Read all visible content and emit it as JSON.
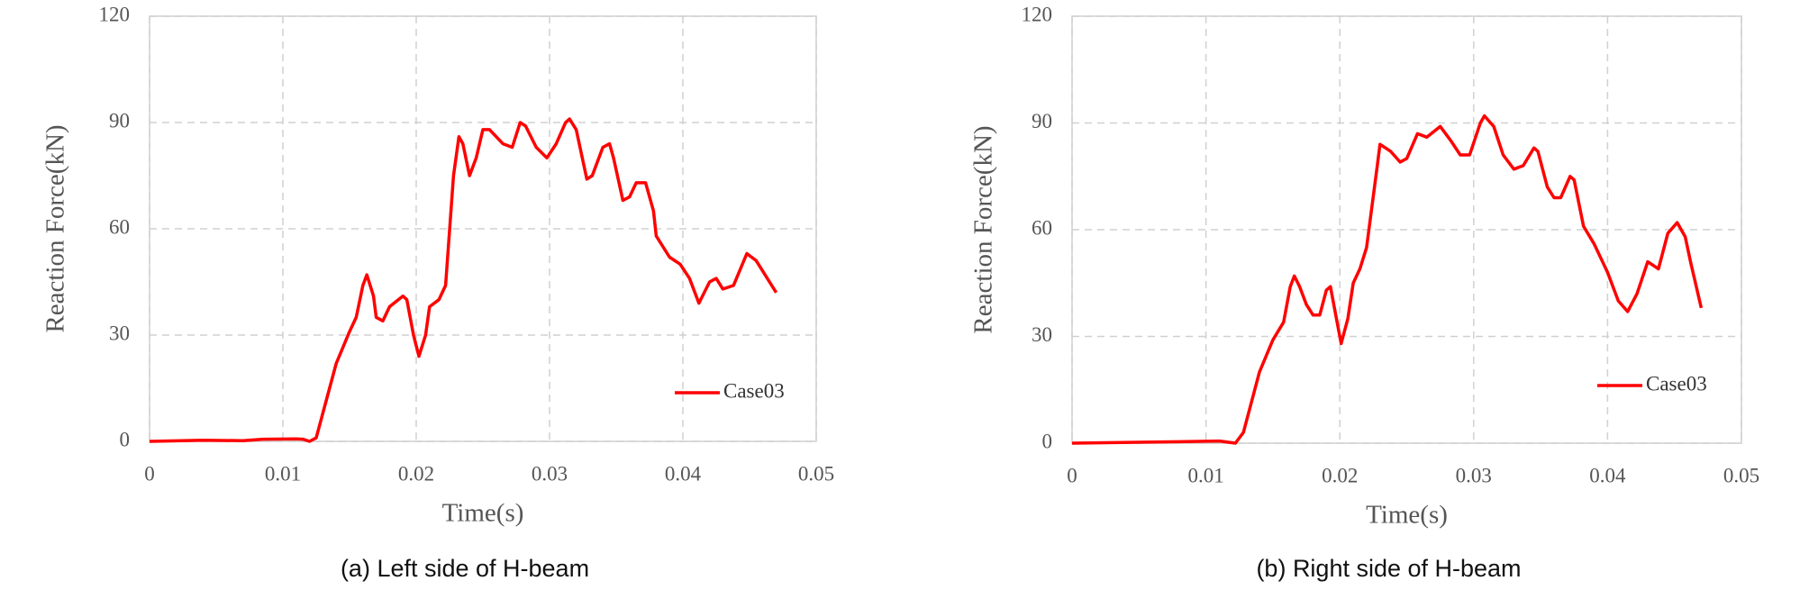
{
  "chart_data": [
    {
      "type": "line",
      "caption": "(a) Left side of H-beam",
      "x_label": "Time(s)",
      "y_label": "Reaction Force(kN)",
      "xlim": [
        0,
        0.05
      ],
      "xticks": [
        0,
        0.01,
        0.02,
        0.03,
        0.04,
        0.05
      ],
      "ylim": [
        0,
        120
      ],
      "yticks": [
        0,
        30,
        60,
        90,
        120
      ],
      "grid": true,
      "legend": "right",
      "series": [
        {
          "name": "Case03",
          "color": "#ff0000",
          "x": [
            0,
            0.004,
            0.007,
            0.0085,
            0.011,
            0.0115,
            0.012,
            0.0125,
            0.013,
            0.014,
            0.015,
            0.0155,
            0.016,
            0.0163,
            0.0168,
            0.017,
            0.0175,
            0.018,
            0.019,
            0.0193,
            0.0198,
            0.0202,
            0.0207,
            0.021,
            0.0217,
            0.0222,
            0.0228,
            0.0232,
            0.0235,
            0.024,
            0.0245,
            0.025,
            0.0255,
            0.0265,
            0.0272,
            0.0278,
            0.0282,
            0.029,
            0.0298,
            0.0305,
            0.0312,
            0.0315,
            0.032,
            0.0328,
            0.0332,
            0.034,
            0.0345,
            0.0348,
            0.0355,
            0.036,
            0.0365,
            0.0372,
            0.0378,
            0.038,
            0.039,
            0.0398,
            0.0405,
            0.0412,
            0.042,
            0.0425,
            0.043,
            0.0438,
            0.0448,
            0.0455,
            0.047
          ],
          "values": [
            0,
            0.3,
            0.2,
            0.6,
            0.7,
            0.6,
            0,
            1,
            8,
            22,
            31,
            35,
            44,
            47,
            41,
            35,
            34,
            38,
            41,
            40,
            30,
            24,
            30,
            38,
            40,
            44,
            75,
            86,
            84,
            75,
            80,
            88,
            88,
            84,
            83,
            90,
            89,
            83,
            80,
            84,
            90,
            91,
            88,
            74,
            75,
            83,
            84,
            80,
            68,
            69,
            73,
            73,
            65,
            58,
            52,
            50,
            46,
            39,
            45,
            46,
            43,
            44,
            53,
            51,
            42
          ]
        }
      ]
    },
    {
      "type": "line",
      "caption": "(b) Right side of H-beam",
      "x_label": "Time(s)",
      "y_label": "Reaction Force(kN)",
      "xlim": [
        0,
        0.05
      ],
      "xticks": [
        0,
        0.01,
        0.02,
        0.03,
        0.04,
        0.05
      ],
      "ylim": [
        0,
        120
      ],
      "yticks": [
        0,
        30,
        60,
        90,
        120
      ],
      "grid": true,
      "legend": "right",
      "series": [
        {
          "name": "Case03",
          "color": "#ff0000",
          "x": [
            0,
            0.008,
            0.011,
            0.0122,
            0.0128,
            0.014,
            0.015,
            0.0158,
            0.0163,
            0.0166,
            0.017,
            0.0175,
            0.018,
            0.0185,
            0.019,
            0.0193,
            0.0197,
            0.0201,
            0.0206,
            0.021,
            0.0215,
            0.022,
            0.0228,
            0.023,
            0.0238,
            0.0245,
            0.025,
            0.0258,
            0.0265,
            0.0275,
            0.0283,
            0.029,
            0.0297,
            0.0305,
            0.0308,
            0.0315,
            0.0322,
            0.033,
            0.0337,
            0.0345,
            0.0348,
            0.0355,
            0.036,
            0.0365,
            0.0372,
            0.0375,
            0.0382,
            0.039,
            0.04,
            0.0408,
            0.0415,
            0.0422,
            0.043,
            0.0438,
            0.0445,
            0.0452,
            0.0458,
            0.0462,
            0.047
          ],
          "values": [
            0,
            0.4,
            0.6,
            0,
            3,
            20,
            29,
            34,
            44,
            47,
            44,
            39,
            36,
            36,
            43,
            44,
            36,
            28,
            35,
            45,
            49,
            55,
            78,
            84,
            82,
            79,
            80,
            87,
            86,
            89,
            85,
            81,
            81,
            90,
            92,
            89,
            81,
            77,
            78,
            83,
            82,
            72,
            69,
            69,
            75,
            74,
            61,
            56,
            48,
            40,
            37,
            42,
            51,
            49,
            59,
            62,
            58,
            51,
            38
          ]
        }
      ]
    }
  ]
}
